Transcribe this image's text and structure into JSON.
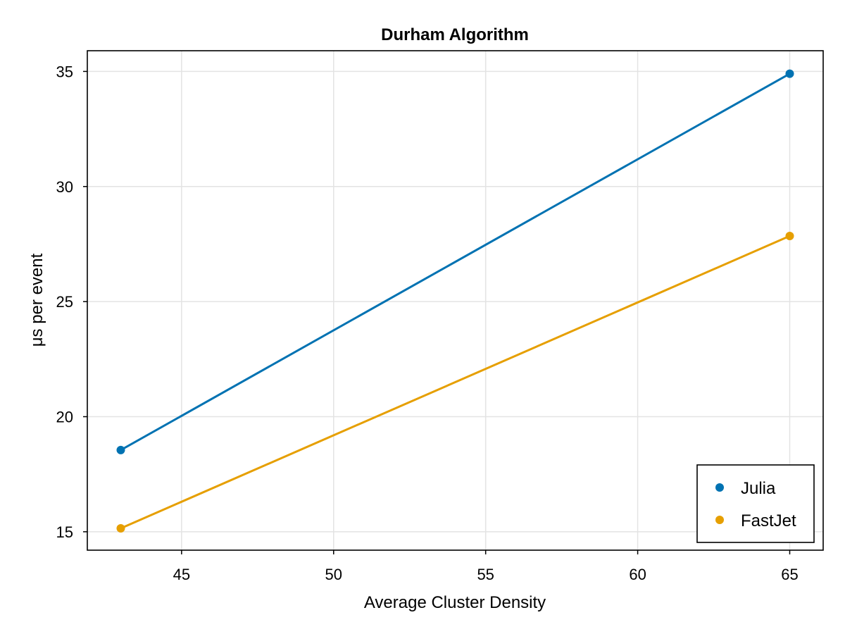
{
  "chart_data": {
    "type": "line",
    "title": "Durham Algorithm",
    "xlabel": "Average Cluster Density",
    "ylabel": "μs per event",
    "xlim": [
      41.9,
      66.1
    ],
    "ylim": [
      14.2,
      35.9
    ],
    "xticks": [
      45,
      50,
      55,
      60,
      65
    ],
    "yticks": [
      15,
      20,
      25,
      30,
      35
    ],
    "grid": true,
    "legend_position": "bottom-right",
    "series": [
      {
        "name": "Julia",
        "color": "#0072b2",
        "x": [
          43,
          65
        ],
        "y": [
          18.55,
          34.9
        ]
      },
      {
        "name": "FastJet",
        "color": "#e69f00",
        "x": [
          43,
          65
        ],
        "y": [
          15.15,
          27.85
        ]
      }
    ]
  }
}
